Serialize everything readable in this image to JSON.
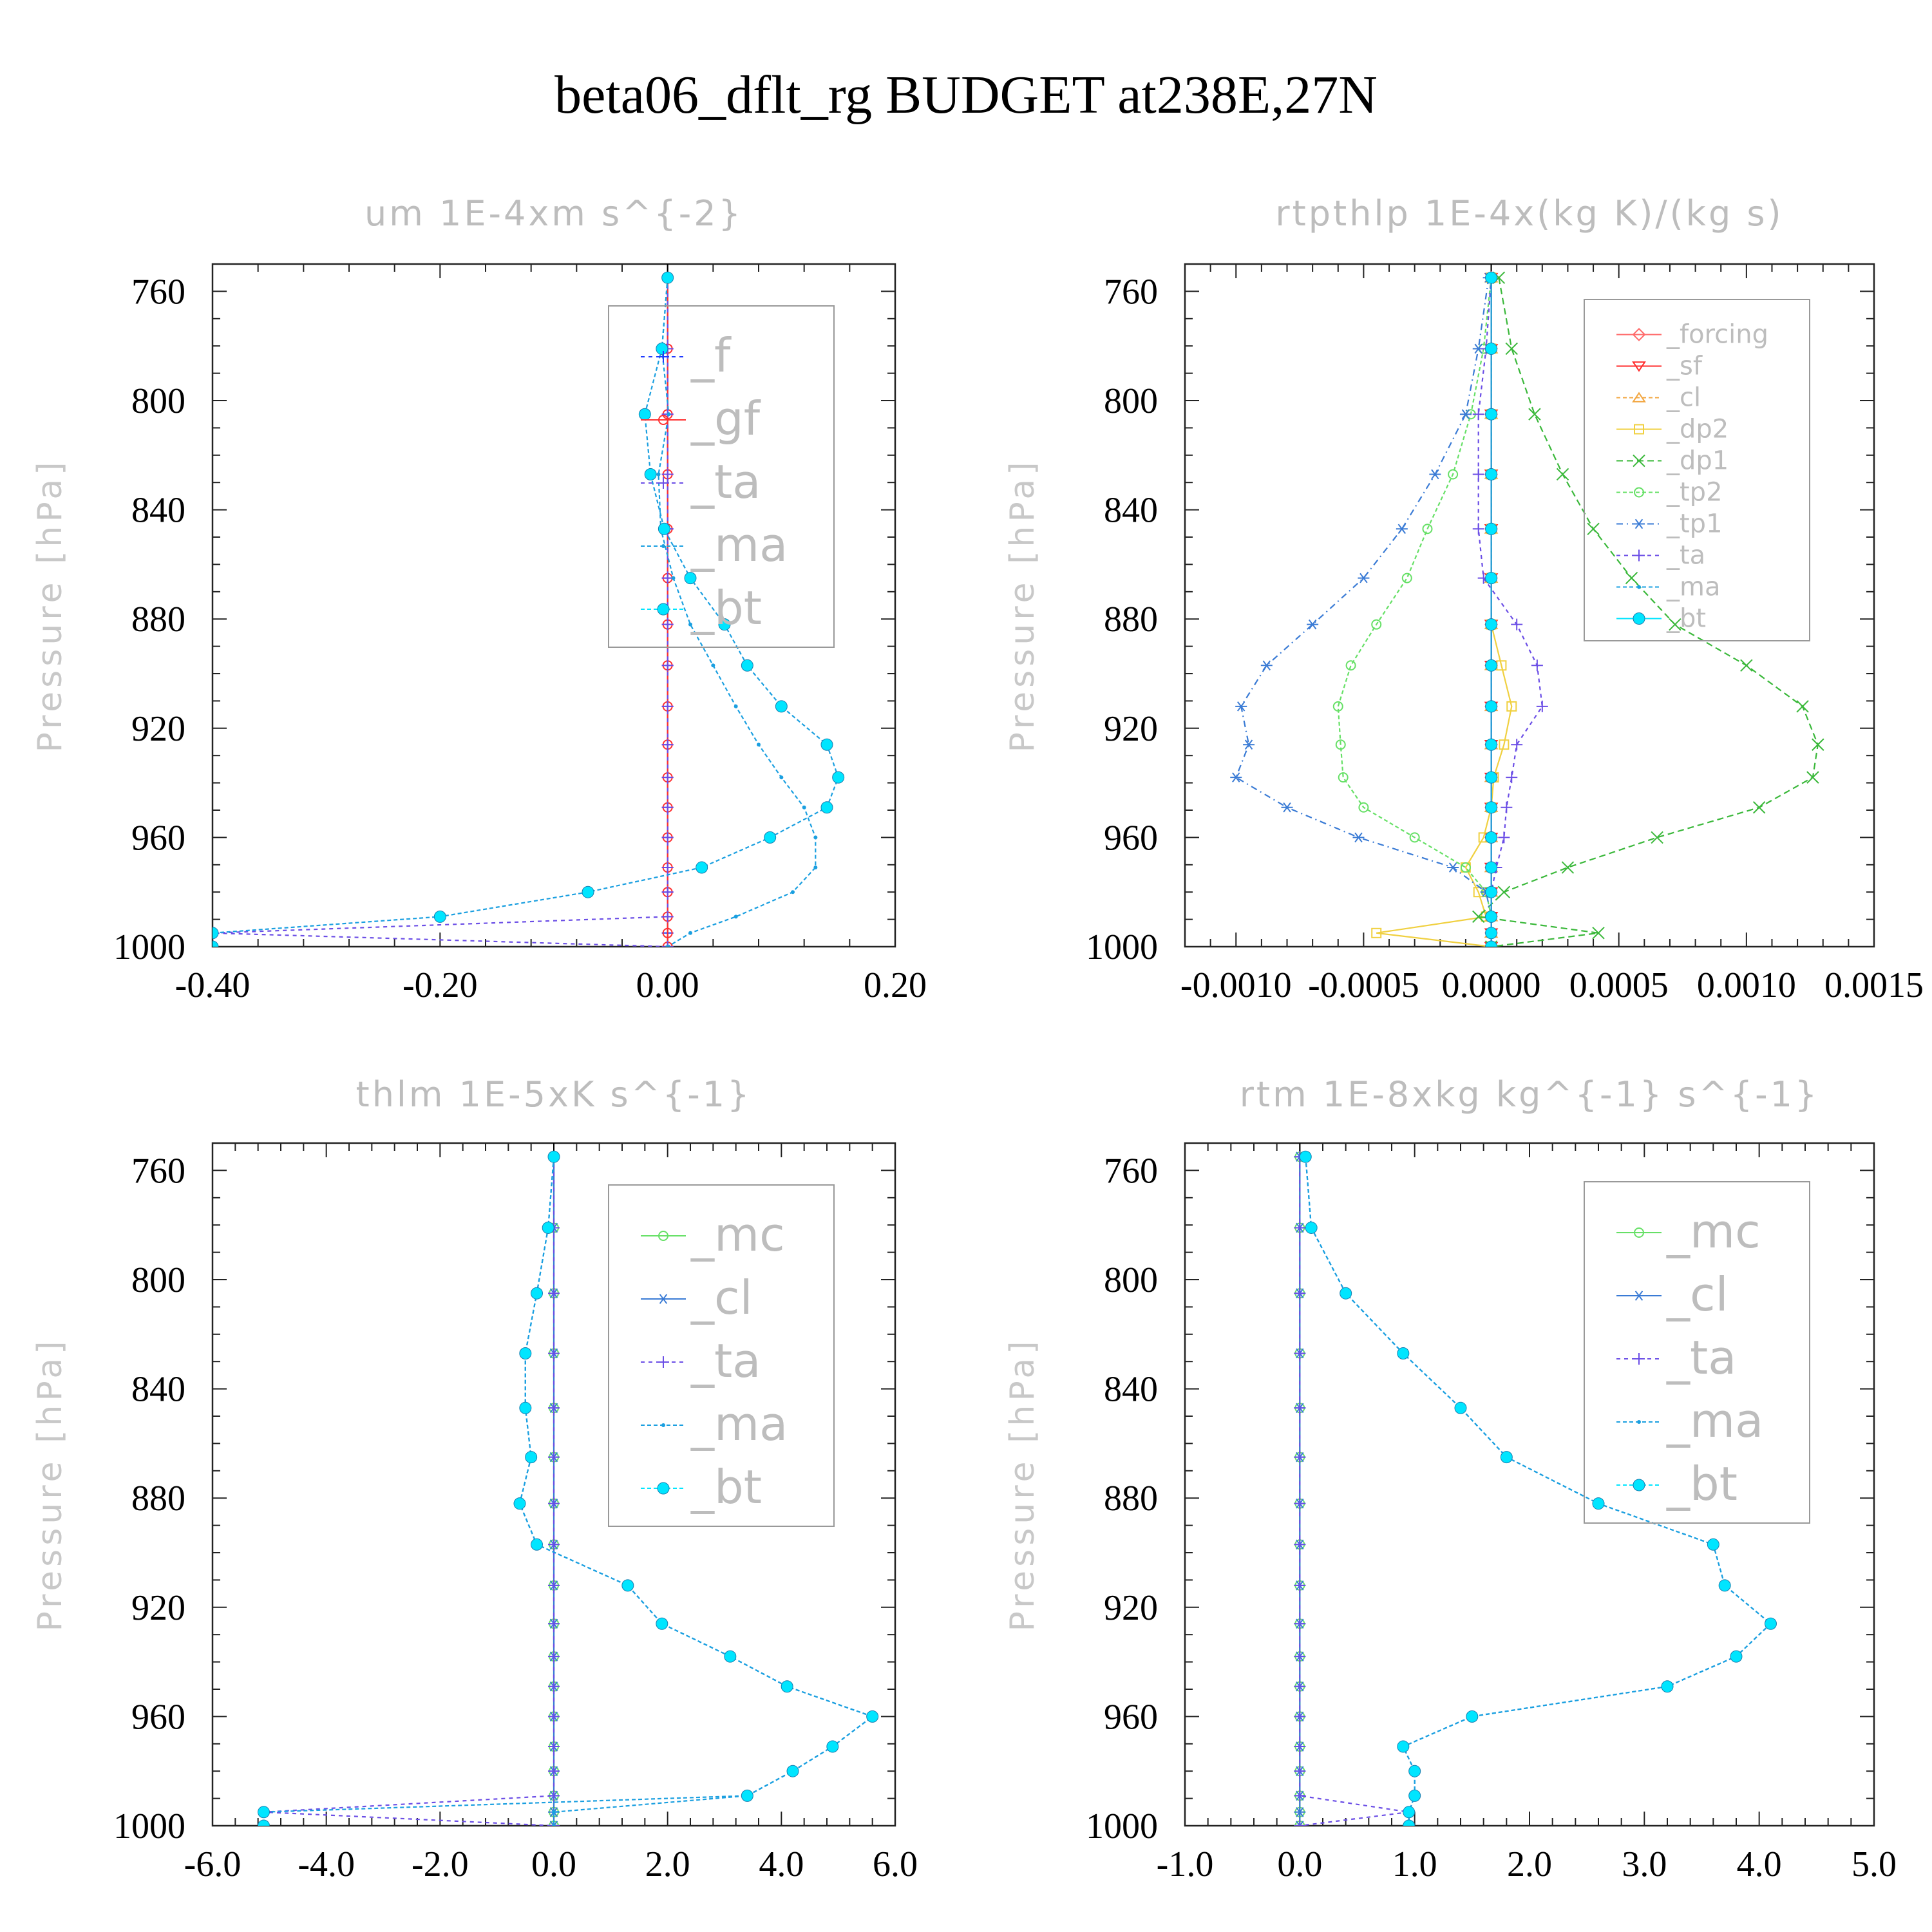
{
  "figure_title": "beta06_dflt_rg  BUDGET at238E,27N",
  "colors": {
    "f": "#1f3bff",
    "gf": "#ff3030",
    "ta": "#6b4ee6",
    "ma": "#1a9fe0",
    "bt": "#00e5ff",
    "forcing": "#ff6a6a",
    "sf": "#ff2a2a",
    "cl": "#f2a640",
    "dp2": "#f0d040",
    "dp1": "#3ab83a",
    "tp2": "#66e066",
    "tp1": "#3a7bd5",
    "mc": "#66e066",
    "cl_blue": "#3a7bd5"
  },
  "chart_data": [
    {
      "type": "line",
      "title": "um  1E-4xm s^{-2}",
      "ylabel": "Pressure [hPa]",
      "xlim": [
        -0.4,
        0.2
      ],
      "ylim": [
        1000,
        750
      ],
      "xticks": [
        -0.4,
        -0.2,
        0.0,
        0.2
      ],
      "xtick_labels": [
        "-0.40",
        "-0.20",
        "0.00",
        "0.20"
      ],
      "yticks": [
        760,
        800,
        840,
        880,
        920,
        960,
        1000
      ],
      "ytick_labels": [
        "760",
        "800",
        "840",
        "880",
        "920",
        "960",
        "1000"
      ],
      "legend_font": 72,
      "legend_pos": "top-right",
      "y": [
        755,
        781,
        805,
        827,
        847,
        865,
        882,
        897,
        912,
        926,
        938,
        949,
        960,
        971,
        980,
        989,
        995,
        1000
      ],
      "series": [
        {
          "name": "_f",
          "key": "f",
          "marker": "plus",
          "dash": "6 6",
          "values": [
            0,
            0,
            0,
            0,
            0,
            0,
            0,
            0,
            0,
            0,
            0,
            0,
            0,
            0,
            0,
            0,
            0,
            0
          ]
        },
        {
          "name": "_gf",
          "key": "gf",
          "marker": "circle-open",
          "dash": "",
          "values": [
            0,
            0,
            0,
            0,
            0,
            0,
            0,
            0,
            0,
            0,
            0,
            0,
            0,
            0,
            0,
            0,
            0,
            0
          ]
        },
        {
          "name": "_ta",
          "key": "ta",
          "marker": "plus",
          "dash": "6 6",
          "values": [
            0,
            0,
            0,
            0,
            0,
            0,
            0,
            0,
            0,
            0,
            0,
            0,
            0,
            0,
            0,
            0,
            -0.4,
            0
          ]
        },
        {
          "name": "_ma",
          "key": "ma",
          "marker": "dot",
          "dash": "6 4",
          "values": [
            0,
            -0.005,
            0.001,
            -0.008,
            -0.006,
            0.005,
            0.02,
            0.04,
            0.06,
            0.08,
            0.1,
            0.12,
            0.13,
            0.13,
            0.11,
            0.06,
            0.02,
            0
          ]
        },
        {
          "name": "_bt",
          "key": "bt",
          "marker": "filled",
          "dash": "6 4",
          "values": [
            0,
            -0.005,
            -0.02,
            -0.015,
            -0.003,
            0.02,
            0.05,
            0.07,
            0.1,
            0.14,
            0.15,
            0.14,
            0.09,
            0.03,
            -0.07,
            -0.2,
            -0.4,
            -0.4
          ]
        }
      ]
    },
    {
      "type": "line",
      "title": "rtpthlp  1E-4x(kg K)/(kg s)",
      "ylabel": "Pressure [hPa]",
      "xlim": [
        -0.0012,
        0.0015
      ],
      "ylim": [
        1000,
        750
      ],
      "xticks": [
        -0.001,
        -0.0005,
        0.0,
        0.0005,
        0.001,
        0.0015
      ],
      "xtick_labels": [
        "-0.0010",
        "-0.0005",
        "0.0000",
        "0.0005",
        "0.0010",
        "0.0015"
      ],
      "yticks": [
        760,
        800,
        840,
        880,
        920,
        960,
        1000
      ],
      "ytick_labels": [
        "760",
        "800",
        "840",
        "880",
        "920",
        "960",
        "1000"
      ],
      "legend_font": 40,
      "legend_pos": "top-right",
      "y": [
        755,
        781,
        805,
        827,
        847,
        865,
        882,
        897,
        912,
        926,
        938,
        949,
        960,
        971,
        980,
        989,
        995,
        1000
      ],
      "series": [
        {
          "name": "_forcing",
          "key": "forcing",
          "marker": "diamond",
          "dash": "",
          "values": [
            0,
            0,
            0,
            0,
            0,
            0,
            0,
            0,
            0,
            0,
            0,
            0,
            0,
            0,
            0,
            0,
            0,
            0
          ]
        },
        {
          "name": "_sf",
          "key": "sf",
          "marker": "tri-down",
          "dash": "",
          "values": [
            0,
            0,
            0,
            0,
            0,
            0,
            0,
            0,
            0,
            0,
            0,
            0,
            0,
            0,
            0,
            0,
            0,
            0
          ]
        },
        {
          "name": "_cl",
          "key": "cl",
          "marker": "tri-up",
          "dash": "6 4",
          "values": [
            0,
            0,
            0,
            0,
            0,
            0,
            0,
            0,
            0,
            0,
            0,
            0,
            0,
            0,
            0,
            0,
            0,
            0
          ]
        },
        {
          "name": "_dp2",
          "key": "dp2",
          "marker": "square",
          "dash": "",
          "values": [
            0,
            0,
            0,
            0,
            0,
            0,
            0,
            4e-05,
            8e-05,
            5e-05,
            1e-05,
            0,
            -3e-05,
            -0.0001,
            -5e-05,
            -2e-05,
            -0.00045,
            0
          ]
        },
        {
          "name": "_dp1",
          "key": "dp1",
          "marker": "x",
          "dash": "10 6",
          "values": [
            3e-05,
            8e-05,
            0.00017,
            0.00028,
            0.0004,
            0.00055,
            0.00072,
            0.001,
            0.00122,
            0.00128,
            0.00126,
            0.00105,
            0.00065,
            0.0003,
            5e-05,
            -5e-05,
            0.00042,
            0
          ]
        },
        {
          "name": "_tp2",
          "key": "tp2",
          "marker": "circle-open",
          "dash": "6 4",
          "values": [
            0,
            -3e-05,
            -8e-05,
            -0.00015,
            -0.00025,
            -0.00033,
            -0.00045,
            -0.00055,
            -0.0006,
            -0.00059,
            -0.00058,
            -0.0005,
            -0.0003,
            -0.0001,
            -2e-05,
            0,
            0,
            0
          ]
        },
        {
          "name": "_tp1",
          "key": "tp1",
          "marker": "asterisk",
          "dash": "10 6 2 6",
          "values": [
            -1e-05,
            -5e-05,
            -0.0001,
            -0.00022,
            -0.00035,
            -0.0005,
            -0.0007,
            -0.00088,
            -0.00098,
            -0.00095,
            -0.001,
            -0.0008,
            -0.00052,
            -0.00015,
            -2e-05,
            0,
            0,
            0
          ]
        },
        {
          "name": "_ta",
          "key": "ta",
          "marker": "plus",
          "dash": "6 6",
          "values": [
            0,
            -2e-05,
            -5e-05,
            -5e-05,
            -5e-05,
            -3e-05,
            0.0001,
            0.00018,
            0.0002,
            0.0001,
            8e-05,
            6e-05,
            5e-05,
            2e-05,
            0,
            0,
            0,
            0
          ]
        },
        {
          "name": "_ma",
          "key": "ma",
          "marker": "dot",
          "dash": "6 4",
          "values": [
            0,
            0,
            0,
            0,
            0,
            0,
            0,
            0,
            0,
            0,
            0,
            0,
            0,
            0,
            0,
            0,
            0,
            0
          ]
        },
        {
          "name": "_bt",
          "key": "bt",
          "marker": "filled",
          "dash": "",
          "values": [
            0,
            0,
            0,
            0,
            0,
            0,
            0,
            0,
            0,
            0,
            0,
            0,
            0,
            0,
            0,
            0,
            0,
            0
          ]
        }
      ]
    },
    {
      "type": "line",
      "title": "thlm  1E-5xK s^{-1}",
      "ylabel": "Pressure [hPa]",
      "xlim": [
        -6.0,
        6.0
      ],
      "ylim": [
        1000,
        750
      ],
      "xticks": [
        -6.0,
        -4.0,
        -2.0,
        0.0,
        2.0,
        4.0,
        6.0
      ],
      "xtick_labels": [
        "-6.0",
        "-4.0",
        "-2.0",
        "0.0",
        "2.0",
        "4.0",
        "6.0"
      ],
      "yticks": [
        760,
        800,
        840,
        880,
        920,
        960,
        1000
      ],
      "ytick_labels": [
        "760",
        "800",
        "840",
        "880",
        "920",
        "960",
        "1000"
      ],
      "legend_font": 72,
      "legend_pos": "top-right",
      "y": [
        755,
        781,
        805,
        827,
        847,
        865,
        882,
        897,
        912,
        926,
        938,
        949,
        960,
        971,
        980,
        989,
        995,
        1000
      ],
      "series": [
        {
          "name": "_mc",
          "key": "mc",
          "marker": "circle-open",
          "dash": "",
          "values": [
            0,
            0,
            0,
            0,
            0,
            0,
            0,
            0,
            0,
            0,
            0,
            0,
            0,
            0,
            0,
            0,
            0,
            0
          ]
        },
        {
          "name": "_cl",
          "key": "cl_blue",
          "marker": "asterisk",
          "dash": "",
          "values": [
            0,
            0,
            0,
            0,
            0,
            0,
            0,
            0,
            0,
            0,
            0,
            0,
            0,
            0,
            0,
            0,
            0,
            0
          ]
        },
        {
          "name": "_ta",
          "key": "ta",
          "marker": "plus",
          "dash": "6 6",
          "values": [
            0,
            0,
            0,
            0,
            0,
            0,
            0,
            0,
            0,
            0,
            0,
            0,
            0,
            0,
            0,
            0,
            -5.1,
            0
          ]
        },
        {
          "name": "_ma",
          "key": "ma",
          "marker": "dot",
          "dash": "6 4",
          "values": [
            0,
            -0.1,
            -0.3,
            -0.5,
            -0.5,
            -0.4,
            -0.6,
            -0.3,
            1.3,
            1.9,
            3.1,
            4.1,
            5.6,
            4.9,
            4.2,
            3.4,
            0,
            0
          ]
        },
        {
          "name": "_bt",
          "key": "bt",
          "marker": "filled",
          "dash": "6 4",
          "values": [
            0,
            -0.1,
            -0.3,
            -0.5,
            -0.5,
            -0.4,
            -0.6,
            -0.3,
            1.3,
            1.9,
            3.1,
            4.1,
            5.6,
            4.9,
            4.2,
            3.4,
            -5.1,
            -5.1
          ]
        }
      ]
    },
    {
      "type": "line",
      "title": "rtm  1E-8xkg kg^{-1} s^{-1}",
      "ylabel": "Pressure [hPa]",
      "xlim": [
        -1.0,
        5.0
      ],
      "ylim": [
        1000,
        750
      ],
      "xticks": [
        -1.0,
        0.0,
        1.0,
        2.0,
        3.0,
        4.0,
        5.0
      ],
      "xtick_labels": [
        "-1.0",
        "0.0",
        "1.0",
        "2.0",
        "3.0",
        "4.0",
        "5.0"
      ],
      "yticks": [
        760,
        800,
        840,
        880,
        920,
        960,
        1000
      ],
      "ytick_labels": [
        "760",
        "800",
        "840",
        "880",
        "920",
        "960",
        "1000"
      ],
      "legend_font": 72,
      "legend_pos": "top-right",
      "y": [
        755,
        781,
        805,
        827,
        847,
        865,
        882,
        897,
        912,
        926,
        938,
        949,
        960,
        971,
        980,
        989,
        995,
        1000
      ],
      "series": [
        {
          "name": "_mc",
          "key": "mc",
          "marker": "circle-open",
          "dash": "",
          "values": [
            0,
            0,
            0,
            0,
            0,
            0,
            0,
            0,
            0,
            0,
            0,
            0,
            0,
            0,
            0,
            0,
            0,
            0
          ]
        },
        {
          "name": "_cl",
          "key": "cl_blue",
          "marker": "asterisk",
          "dash": "",
          "values": [
            0,
            0,
            0,
            0,
            0,
            0,
            0,
            0,
            0,
            0,
            0,
            0,
            0,
            0,
            0,
            0,
            0,
            0
          ]
        },
        {
          "name": "_ta",
          "key": "ta",
          "marker": "plus",
          "dash": "6 6",
          "values": [
            0,
            0,
            0,
            0,
            0,
            0,
            0,
            0,
            0,
            0,
            0,
            0,
            0,
            0,
            0,
            0,
            0.95,
            0
          ]
        },
        {
          "name": "_ma",
          "key": "ma",
          "marker": "dot",
          "dash": "6 4",
          "values": [
            0.05,
            0.1,
            0.4,
            0.9,
            1.4,
            1.8,
            2.6,
            3.6,
            3.7,
            4.1,
            3.8,
            3.2,
            1.5,
            0.9,
            1.0,
            1.0,
            0.95,
            0.95
          ]
        },
        {
          "name": "_bt",
          "key": "bt",
          "marker": "filled",
          "dash": "6 4",
          "values": [
            0.05,
            0.1,
            0.4,
            0.9,
            1.4,
            1.8,
            2.6,
            3.6,
            3.7,
            4.1,
            3.8,
            3.2,
            1.5,
            0.9,
            1.0,
            1.0,
            0.95,
            0.95
          ]
        }
      ]
    }
  ]
}
